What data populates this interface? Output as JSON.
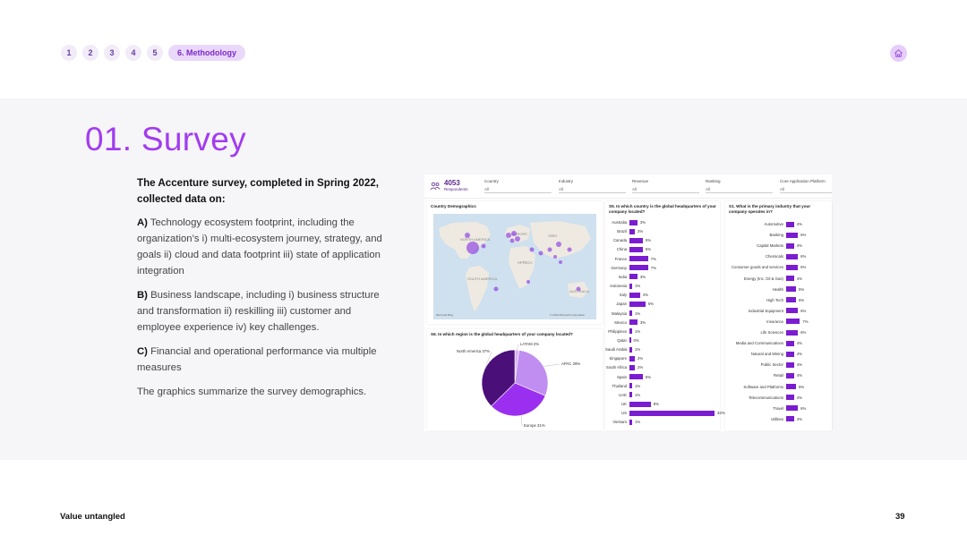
{
  "nav": {
    "items": [
      "1",
      "2",
      "3",
      "4",
      "5"
    ],
    "active": "6. Methodology"
  },
  "title": "01. Survey",
  "body": {
    "lead": "The Accenture survey, completed in Spring 2022, collected data on:",
    "a_label": "A)",
    "a_text": "Technology ecosystem footprint, including the organization’s i) multi-ecosystem journey, strategy, and goals ii) cloud and data footprint iii) state of application integration",
    "b_label": "B)",
    "b_text": "Business landscape, including i) business structure and transformation ii) reskilling iii) customer and employee experience iv) key challenges.",
    "c_label": "C)",
    "c_text": "Financial and operational performance via multiple measures",
    "summary": "The graphics summarize the survey demographics."
  },
  "dashboard": {
    "respondents_count": "4053",
    "respondents_label": "Respondents",
    "filters": [
      {
        "label": "Country",
        "value": "All"
      },
      {
        "label": "Industry",
        "value": "All"
      },
      {
        "label": "Revenue",
        "value": "All"
      },
      {
        "label": "Ranking",
        "value": "All"
      },
      {
        "label": "Core Application Platform",
        "value": "All"
      }
    ],
    "map": {
      "title": "Country Demographics",
      "regions": [
        "NORTH AMERICA",
        "EUROPE",
        "ASIA",
        "AFRICA",
        "SOUTH AMERICA",
        "AUSTRALIA"
      ],
      "attribution_left": "Microsoft Bing",
      "attribution_right": "© 2022 Microsoft Corporation"
    },
    "pie": {
      "title": "S6. In which region is the global headquarters of your company located?",
      "slices": [
        {
          "label": "LATAM 2%",
          "value": 2,
          "color": "#d7b3f5"
        },
        {
          "label": "APAC 29%",
          "value": 29,
          "color": "#c08ef0"
        },
        {
          "label": "Europe 31%",
          "value": 31,
          "color": "#9b2ff0"
        },
        {
          "label": "North America 37%",
          "value": 37,
          "color": "#4a0f78"
        }
      ]
    },
    "countries": {
      "title": "S5. In which country is the global headquarters of your company located?",
      "items": [
        {
          "label": "Australia",
          "value": 3
        },
        {
          "label": "Brazil",
          "value": 2
        },
        {
          "label": "Canada",
          "value": 5
        },
        {
          "label": "China",
          "value": 5
        },
        {
          "label": "France",
          "value": 7
        },
        {
          "label": "Germany",
          "value": 7
        },
        {
          "label": "India",
          "value": 3
        },
        {
          "label": "Indonesia",
          "value": 1
        },
        {
          "label": "Italy",
          "value": 4
        },
        {
          "label": "Japan",
          "value": 6
        },
        {
          "label": "Malaysia",
          "value": 1
        },
        {
          "label": "Mexico",
          "value": 3
        },
        {
          "label": "Philippines",
          "value": 1
        },
        {
          "label": "Qatar",
          "value": 0
        },
        {
          "label": "Saudi Arabia",
          "value": 1
        },
        {
          "label": "Singapore",
          "value": 2
        },
        {
          "label": "South Africa",
          "value": 2
        },
        {
          "label": "Spain",
          "value": 5
        },
        {
          "label": "Thailand",
          "value": 1
        },
        {
          "label": "UAE",
          "value": 1
        },
        {
          "label": "UK",
          "value": 8
        },
        {
          "label": "US",
          "value": 32
        },
        {
          "label": "Vietnam",
          "value": 1
        }
      ]
    },
    "industries": {
      "title": "S1. What is the primary industry that your company operates in?",
      "items": [
        {
          "label": "Automotive",
          "value": 4
        },
        {
          "label": "Banking",
          "value": 6
        },
        {
          "label": "Capital Markets",
          "value": 4
        },
        {
          "label": "Chemicals",
          "value": 6
        },
        {
          "label": "Consumer goods and services",
          "value": 6
        },
        {
          "label": "Energy (Inc. Oil & Gas)",
          "value": 4
        },
        {
          "label": "Health",
          "value": 5
        },
        {
          "label": "High Tech",
          "value": 5
        },
        {
          "label": "Industrial Equipment",
          "value": 6
        },
        {
          "label": "Insurance",
          "value": 7
        },
        {
          "label": "Life Sciences",
          "value": 6
        },
        {
          "label": "Media and Communications",
          "value": 4
        },
        {
          "label": "Natural and Mining",
          "value": 4
        },
        {
          "label": "Public Sector",
          "value": 4
        },
        {
          "label": "Retail",
          "value": 4
        },
        {
          "label": "Software and Platforms",
          "value": 5
        },
        {
          "label": "Telecommunications",
          "value": 4
        },
        {
          "label": "Travel",
          "value": 6
        },
        {
          "label": "Utilities",
          "value": 4
        }
      ]
    }
  },
  "footer": {
    "left": "Value untangled",
    "page": "39"
  },
  "colors": {
    "accent": "#a23cf0",
    "bar": "#7a1dd1"
  }
}
